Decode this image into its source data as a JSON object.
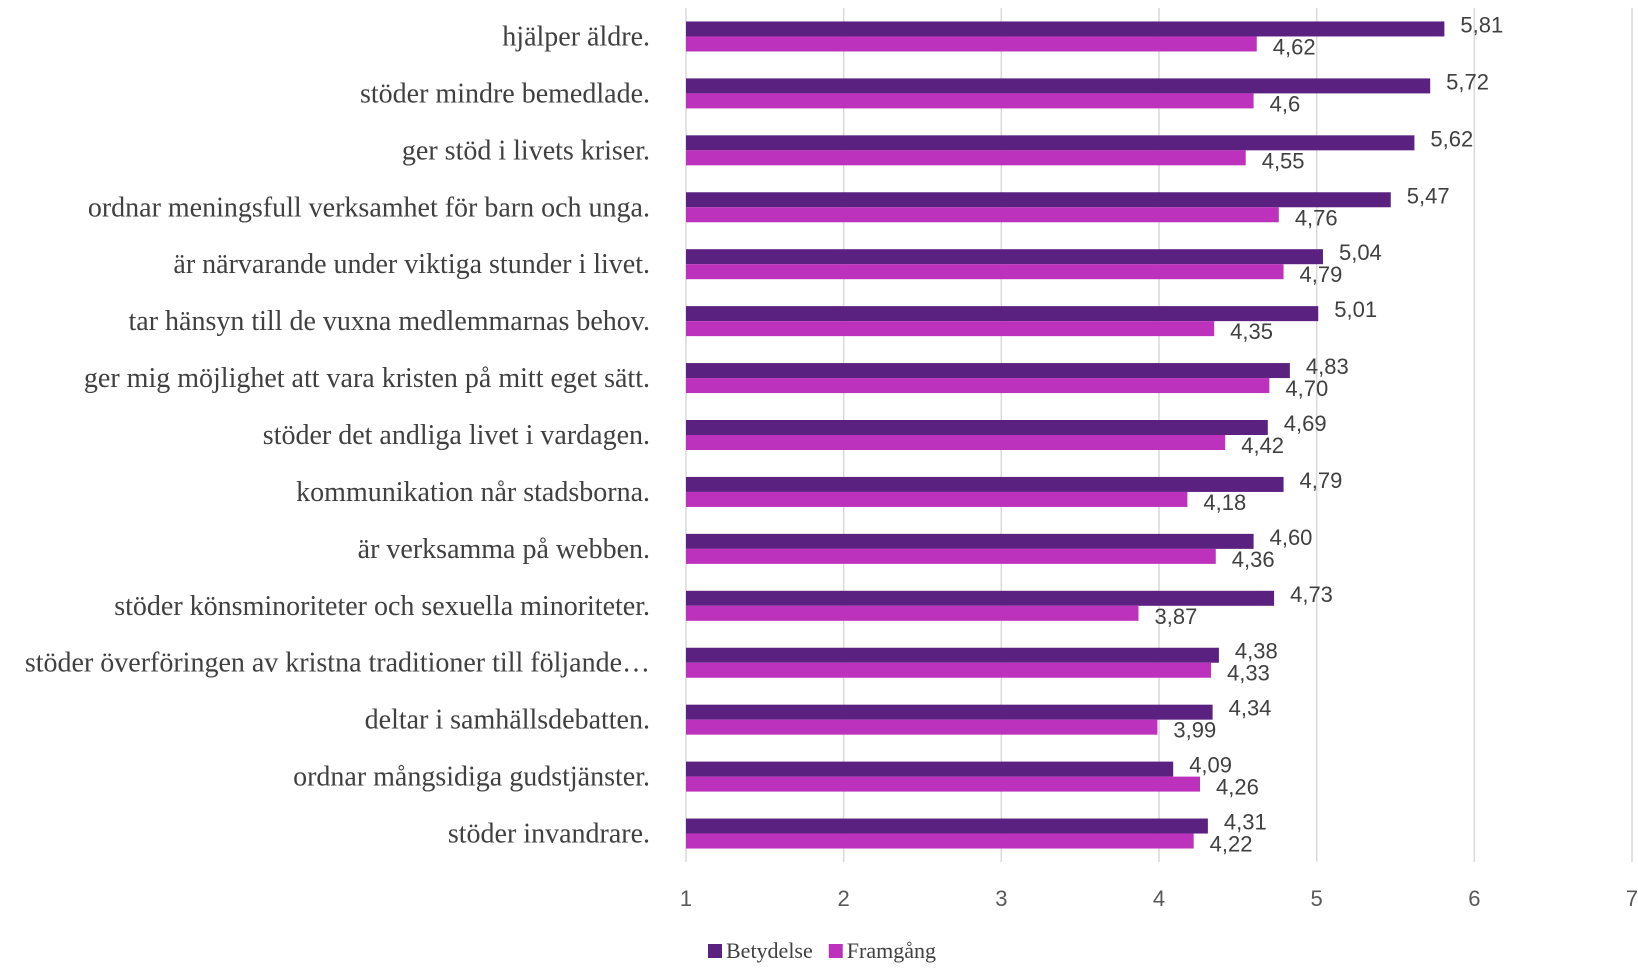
{
  "chart_data": {
    "type": "bar",
    "orientation": "horizontal",
    "categories": [
      "hjälper äldre.",
      "stöder mindre bemedlade.",
      "ger stöd i livets kriser.",
      "ordnar meningsfull verksamhet för barn och unga.",
      "är närvarande under viktiga stunder i livet.",
      "tar hänsyn till de vuxna medlemmarnas behov.",
      "ger mig möjlighet att vara kristen på mitt eget sätt.",
      "stöder det andliga livet i vardagen.",
      "kommunikation når stadsborna.",
      "är verksamma på webben.",
      "stöder könsminoriteter och sexuella minoriteter.",
      "stöder överföringen av kristna traditioner till följande…",
      "deltar i samhällsdebatten.",
      "ordnar mångsidiga gudstjänster.",
      "stöder invandrare."
    ],
    "series": [
      {
        "name": "Betydelse",
        "color": "#5b2180",
        "values": [
          5.81,
          5.72,
          5.62,
          5.47,
          5.04,
          5.01,
          4.83,
          4.69,
          4.79,
          4.6,
          4.73,
          4.38,
          4.34,
          4.09,
          4.31
        ],
        "labels": [
          "5,81",
          "5,72",
          "5,62",
          "5,47",
          "5,04",
          "5,01",
          "4,83",
          "4,69",
          "4,79",
          "4,60",
          "4,73",
          "4,38",
          "4,34",
          "4,09",
          "4,31"
        ]
      },
      {
        "name": "Framgång",
        "color": "#bd32bd",
        "values": [
          4.62,
          4.6,
          4.55,
          4.76,
          4.79,
          4.35,
          4.7,
          4.42,
          4.18,
          4.36,
          3.87,
          4.33,
          3.99,
          4.26,
          4.22
        ],
        "labels": [
          "4,62",
          "4,6",
          "4,55",
          "4,76",
          "4,79",
          "4,35",
          "4,70",
          "4,42",
          "4,18",
          "4,36",
          "3,87",
          "4,33",
          "3,99",
          "4,26",
          "4,22"
        ]
      }
    ],
    "xlim": [
      1,
      7
    ],
    "x_ticks": [
      "1",
      "2",
      "3",
      "4",
      "5",
      "6",
      "7"
    ],
    "grid": true,
    "legend_position": "bottom",
    "title": "",
    "xlabel": "",
    "ylabel": ""
  }
}
